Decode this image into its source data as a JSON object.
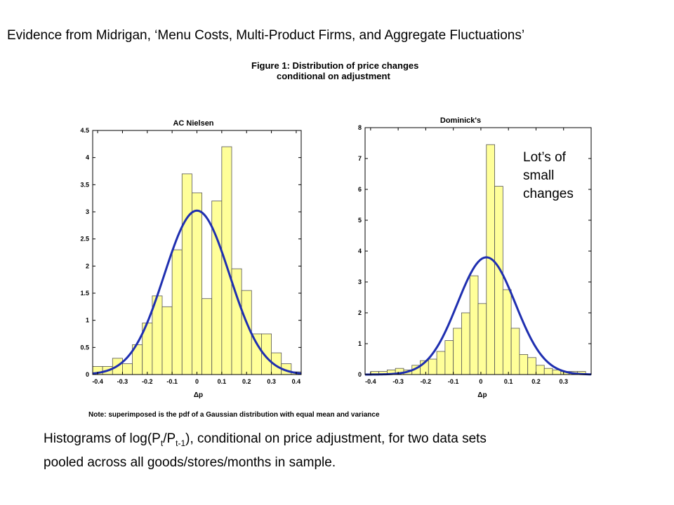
{
  "slide": {
    "title": "Evidence from Midrigan, ‘Menu Costs, Multi-Product Firms, and Aggregate Fluctuations’",
    "figure_caption_line1": "Figure 1: Distribution of price changes",
    "figure_caption_line2": "conditional on adjustment",
    "callout_line1": "Lot’s of",
    "callout_line2": "small",
    "callout_line3": "changes",
    "note": "Note: superimposed is the pdf of a Gaussian distribution with equal mean and variance",
    "summary_part1": "Histograms of log(P",
    "summary_sub1": "t",
    "summary_part2": "/P",
    "summary_sub2": "t-1",
    "summary_part3": "), conditional on price adjustment, for two data sets",
    "summary_line2": "pooled across all goods/stores/months in sample."
  },
  "colors": {
    "bar_fill": "#ffff99",
    "bar_stroke": "#555555",
    "curve": "#1f2fb0",
    "axis": "#000000"
  },
  "chart_data": [
    {
      "type": "bar",
      "title": "AC Nielsen",
      "xlabel": "Δp",
      "ylabel": "",
      "xlim": [
        -0.42,
        0.42
      ],
      "ylim": [
        0,
        4.5
      ],
      "xticks": [
        -0.4,
        -0.3,
        -0.2,
        -0.1,
        0,
        0.1,
        0.2,
        0.3,
        0.4
      ],
      "xtick_labels": [
        "-0.4",
        "-0.3",
        "-0.2",
        "-0.1",
        "0",
        "0.1",
        "0.2",
        "0.3",
        "0.4"
      ],
      "yticks": [
        0,
        0.5,
        1,
        1.5,
        2,
        2.5,
        3,
        3.5,
        4,
        4.5
      ],
      "ytick_labels": [
        "0",
        "0.5",
        "1",
        "1.5",
        "2",
        "2.5",
        "3",
        "3.5",
        "4",
        "4.5"
      ],
      "bin_width": 0.04,
      "bin_left_edges": [
        -0.42,
        -0.38,
        -0.34,
        -0.3,
        -0.26,
        -0.22,
        -0.18,
        -0.14,
        -0.1,
        -0.06,
        -0.02,
        0.02,
        0.06,
        0.1,
        0.14,
        0.18,
        0.22,
        0.26,
        0.3,
        0.34,
        0.38
      ],
      "values": [
        0.15,
        0.15,
        0.3,
        0.2,
        0.55,
        0.95,
        1.45,
        1.25,
        2.3,
        3.7,
        3.35,
        1.4,
        3.2,
        4.2,
        1.95,
        1.55,
        0.75,
        0.75,
        0.4,
        0.2,
        0.05
      ],
      "gaussian": {
        "mean": 0.0,
        "sd": 0.132
      },
      "grid": false
    },
    {
      "type": "bar",
      "title": "Dominick's",
      "xlabel": "Δp",
      "ylabel": "",
      "xlim": [
        -0.42,
        0.4
      ],
      "ylim": [
        0,
        8
      ],
      "xticks": [
        -0.4,
        -0.3,
        -0.2,
        -0.1,
        0,
        0.1,
        0.2,
        0.3
      ],
      "xtick_labels": [
        "-0.4",
        "-0.3",
        "-0.2",
        "-0.1",
        "0",
        "0.1",
        "0.2",
        "0.3"
      ],
      "yticks": [
        0,
        1,
        2,
        3,
        4,
        5,
        6,
        7,
        8
      ],
      "ytick_labels": [
        "0",
        "1",
        "2",
        "3",
        "4",
        "5",
        "6",
        "7",
        "8"
      ],
      "bin_width": 0.03,
      "bin_left_edges": [
        -0.4,
        -0.37,
        -0.34,
        -0.31,
        -0.28,
        -0.25,
        -0.22,
        -0.19,
        -0.16,
        -0.13,
        -0.1,
        -0.07,
        -0.04,
        -0.01,
        0.02,
        0.05,
        0.08,
        0.11,
        0.14,
        0.17,
        0.2,
        0.23,
        0.26,
        0.29,
        0.32,
        0.35
      ],
      "values": [
        0.1,
        0.1,
        0.15,
        0.2,
        0.15,
        0.3,
        0.45,
        0.5,
        0.75,
        1.1,
        1.5,
        2.0,
        3.2,
        2.3,
        7.45,
        6.1,
        2.75,
        1.5,
        0.65,
        0.55,
        0.3,
        0.2,
        0.15,
        0.1,
        0.1,
        0.1
      ],
      "gaussian": {
        "mean": 0.02,
        "sd": 0.105
      },
      "grid": false
    }
  ]
}
